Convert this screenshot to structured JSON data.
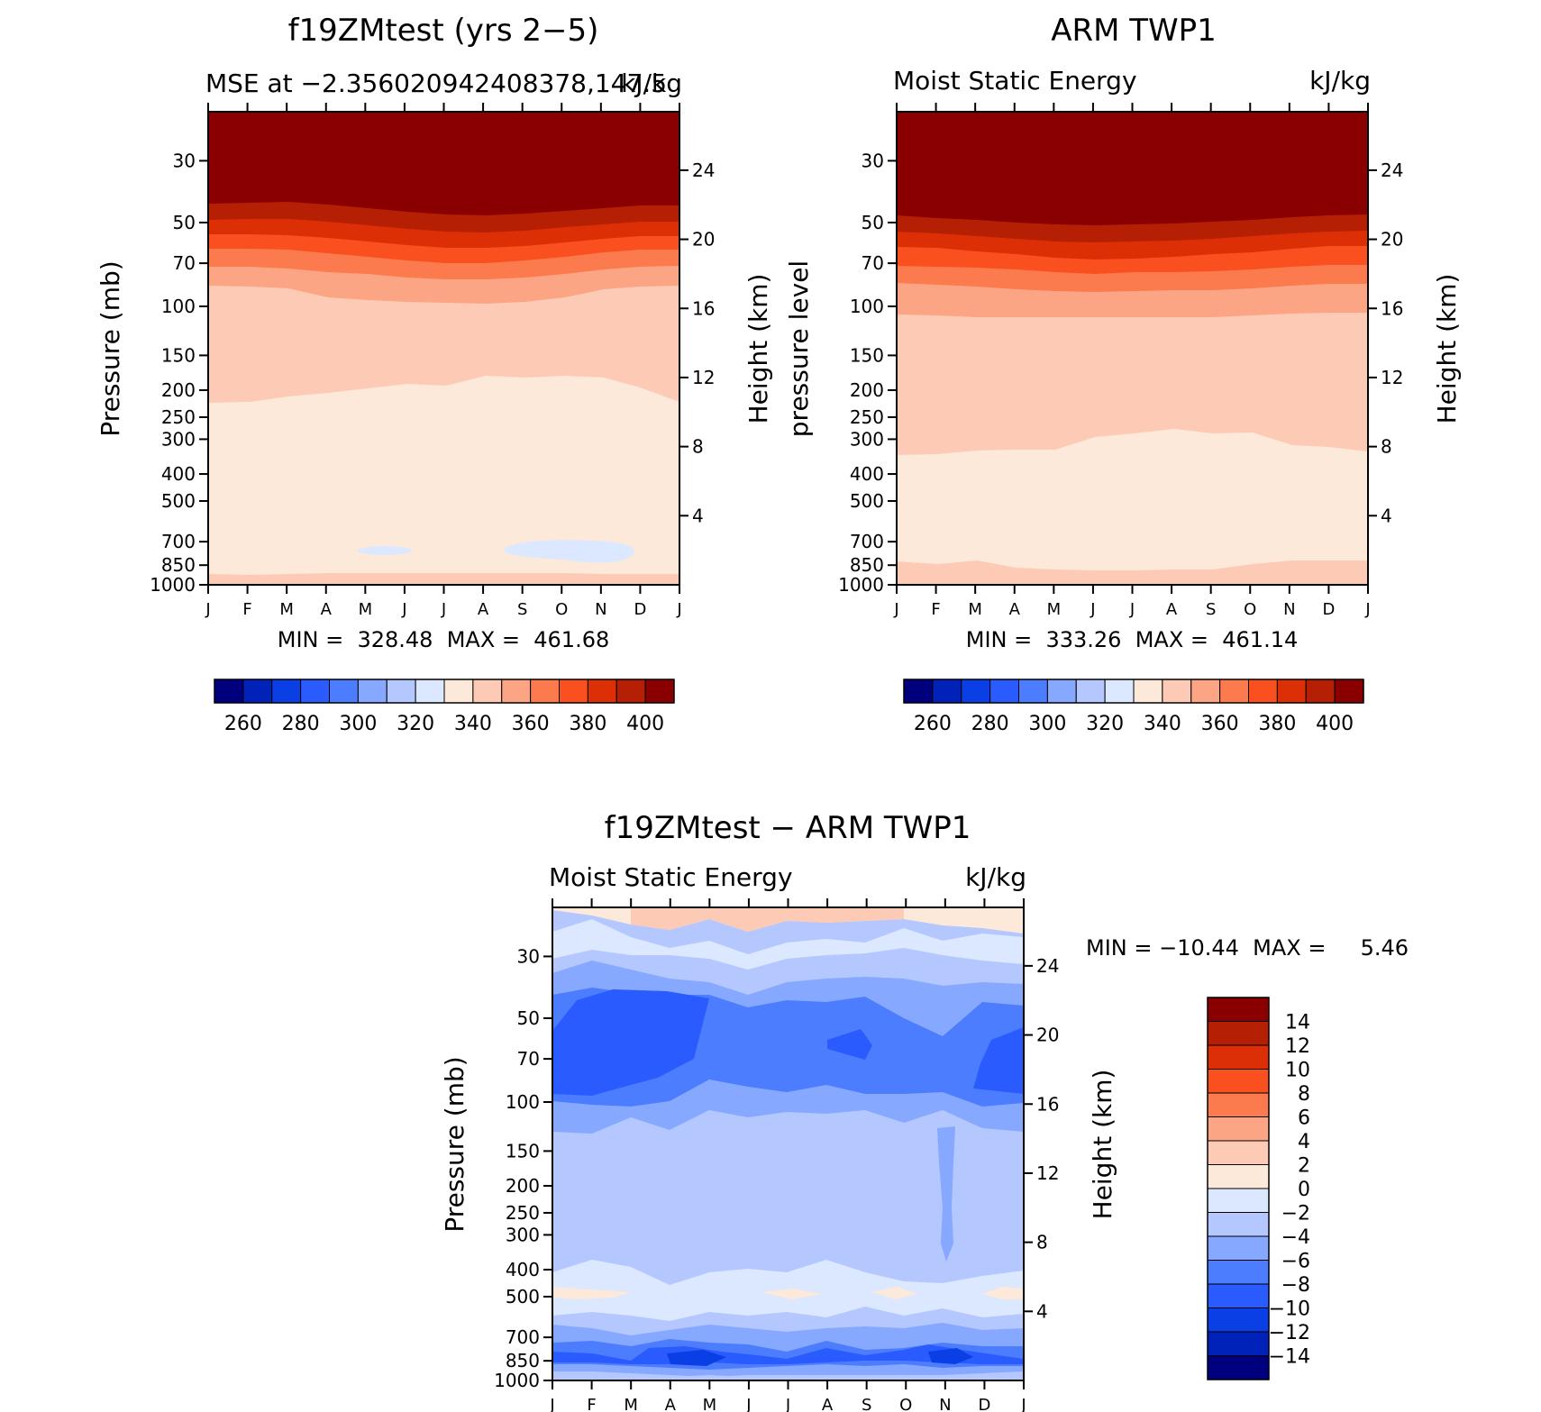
{
  "chart_data": [
    {
      "type": "heatmap",
      "title": "f19ZMtest (yrs 2−5)",
      "subtitle_left": "MSE at −2.356020942408378,147.5",
      "subtitle_right": "kJ/kg",
      "ylabel": "Pressure (mb)",
      "ylabel_right": "Height (km)",
      "xticks": [
        "J",
        "F",
        "M",
        "A",
        "M",
        "J",
        "J",
        "A",
        "S",
        "O",
        "N",
        "D",
        "J"
      ],
      "yticks": [
        "30",
        "50",
        "70",
        "100",
        "150",
        "200",
        "250",
        "300",
        "400",
        "500",
        "700",
        "850",
        "1000"
      ],
      "yticks_right": [
        "24",
        "20",
        "16",
        "12",
        "8",
        "4"
      ],
      "minmax": "MIN =  328.48  MAX =  461.68",
      "colorbar": {
        "labels": [
          "260",
          "280",
          "300",
          "320",
          "340",
          "360",
          "380",
          "400"
        ],
        "colors": [
          "#00007f",
          "#0022b8",
          "#0a3fe6",
          "#2a5bff",
          "#4c7dff",
          "#86a8ff",
          "#b4c8ff",
          "#dbe8ff",
          "#fde9d9",
          "#fdcbb5",
          "#fca584",
          "#fb7a4e",
          "#fa4f1f",
          "#dc2f05",
          "#b52005",
          "#8a0000"
        ]
      },
      "min": 328.48,
      "max": 461.68
    },
    {
      "type": "heatmap",
      "title": "ARM TWP1",
      "subtitle_left": "Moist Static Energy",
      "subtitle_right": "kJ/kg",
      "ylabel": "pressure level",
      "ylabel_right": "Height (km)",
      "xticks": [
        "J",
        "F",
        "M",
        "A",
        "M",
        "J",
        "J",
        "A",
        "S",
        "O",
        "N",
        "D",
        "J"
      ],
      "yticks": [
        "30",
        "50",
        "70",
        "100",
        "150",
        "200",
        "250",
        "300",
        "400",
        "500",
        "700",
        "850",
        "1000"
      ],
      "yticks_right": [
        "24",
        "20",
        "16",
        "12",
        "8",
        "4"
      ],
      "minmax": "MIN =  333.26  MAX =  461.14",
      "colorbar": {
        "labels": [
          "260",
          "280",
          "300",
          "320",
          "340",
          "360",
          "380",
          "400"
        ],
        "colors": [
          "#00007f",
          "#0022b8",
          "#0a3fe6",
          "#2a5bff",
          "#4c7dff",
          "#86a8ff",
          "#b4c8ff",
          "#dbe8ff",
          "#fde9d9",
          "#fdcbb5",
          "#fca584",
          "#fb7a4e",
          "#fa4f1f",
          "#dc2f05",
          "#b52005",
          "#8a0000"
        ]
      },
      "min": 333.26,
      "max": 461.14
    },
    {
      "type": "heatmap",
      "title": "f19ZMtest − ARM TWP1",
      "subtitle_left": "Moist Static Energy",
      "subtitle_right": "kJ/kg",
      "ylabel": "Pressure (mb)",
      "ylabel_right": "Height (km)",
      "xticks": [
        "J",
        "F",
        "M",
        "A",
        "M",
        "J",
        "J",
        "A",
        "S",
        "O",
        "N",
        "D",
        "J"
      ],
      "yticks": [
        "30",
        "50",
        "70",
        "100",
        "150",
        "200",
        "250",
        "300",
        "400",
        "500",
        "700",
        "850",
        "1000"
      ],
      "yticks_right": [
        "24",
        "20",
        "16",
        "12",
        "8",
        "4"
      ],
      "minmax": "MIN = −10.44  MAX =     5.46",
      "colorbar": {
        "labels": [
          "14",
          "12",
          "10",
          "8",
          "6",
          "4",
          "2",
          "0",
          "−2",
          "−4",
          "−6",
          "−8",
          "−10",
          "−12",
          "−14"
        ],
        "colors": [
          "#8a0000",
          "#b52005",
          "#dc2f05",
          "#fa4f1f",
          "#fb7a4e",
          "#fca584",
          "#fdcbb5",
          "#fde9d9",
          "#dbe8ff",
          "#b4c8ff",
          "#86a8ff",
          "#4c7dff",
          "#2a5bff",
          "#0a3fe6",
          "#0022b8",
          "#00007f"
        ]
      },
      "min": -10.44,
      "max": 5.46
    }
  ]
}
